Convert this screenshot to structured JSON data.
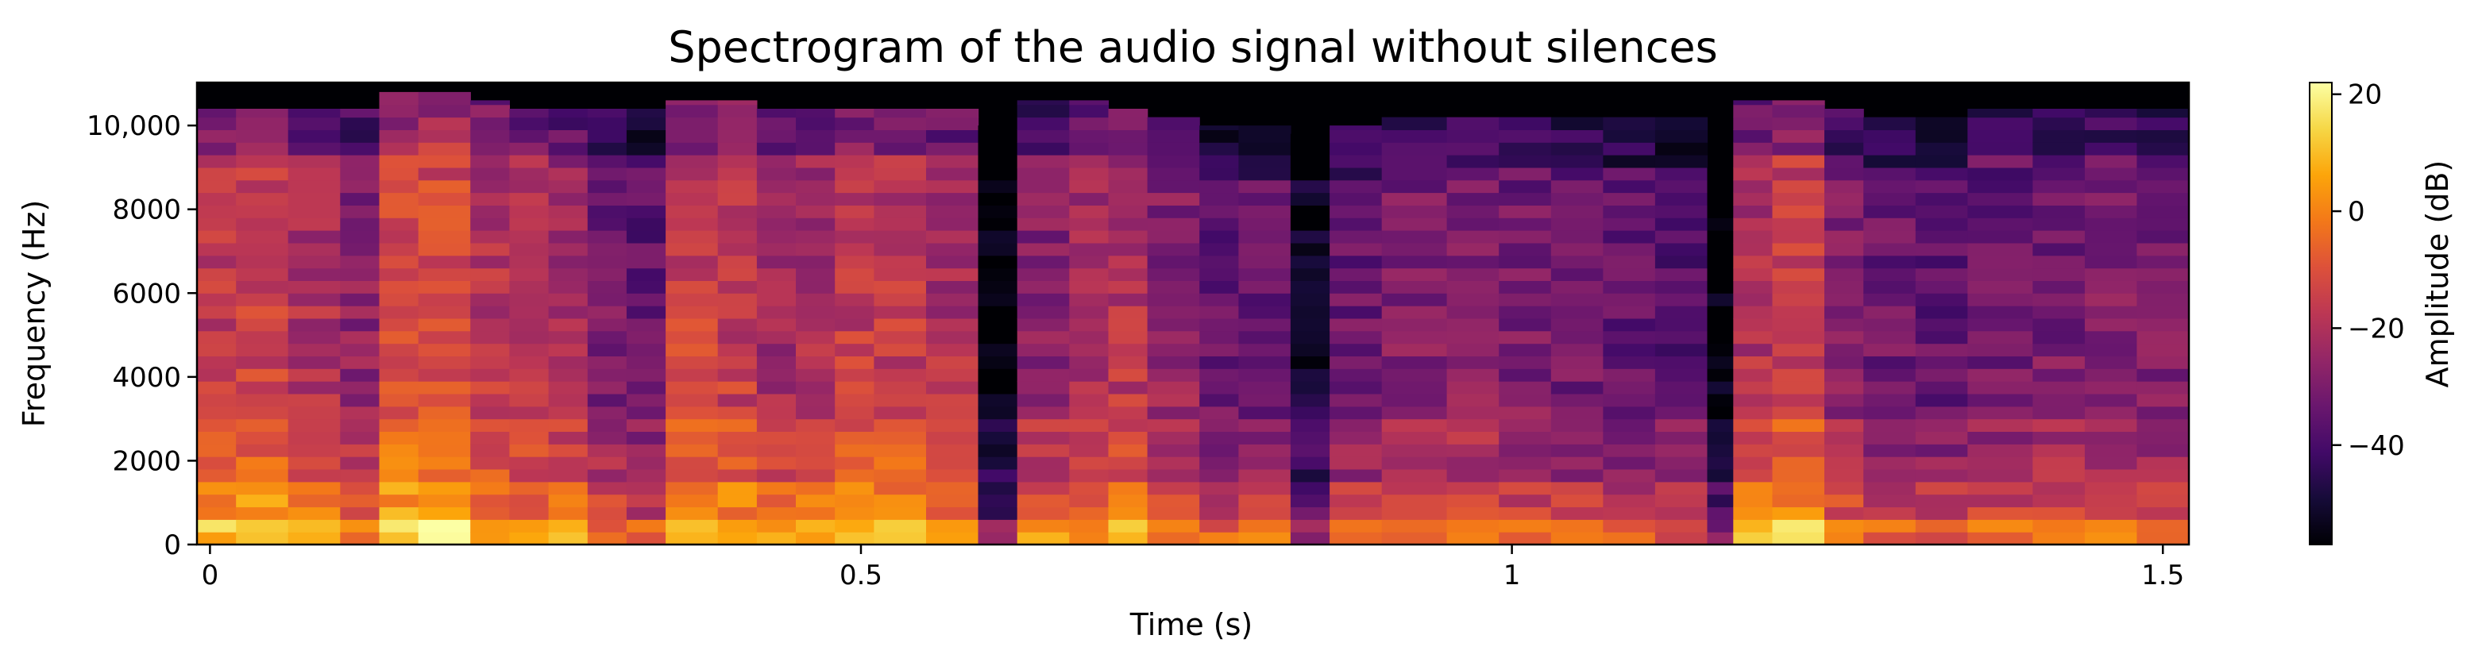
{
  "chart_data": {
    "type": "heatmap",
    "title": "Spectrogram of the audio signal without silences",
    "xlabel": "Time (s)",
    "ylabel": "Frequency (Hz)",
    "xlim": [
      -0.01,
      1.52
    ],
    "ylim": [
      0,
      11025
    ],
    "xticks": [
      0,
      0.5,
      1,
      1.5
    ],
    "xtick_labels": [
      "0",
      "0.5",
      "1",
      "1.5"
    ],
    "yticks": [
      0,
      2000,
      4000,
      6000,
      8000,
      10000
    ],
    "ytick_labels": [
      "0",
      "2000",
      "4000",
      "6000",
      "8000",
      "10,000"
    ],
    "colormap": "inferno",
    "colorbar": {
      "label": "Amplitude (dB)",
      "range": [
        -57,
        22
      ],
      "ticks": [
        20,
        0,
        -20,
        -40
      ],
      "tick_labels": [
        "20",
        "0",
        "−20",
        "−40"
      ]
    },
    "time_segments_s": [
      [
        -0.01,
        0.02
      ],
      [
        0.02,
        0.06
      ],
      [
        0.06,
        0.1
      ],
      [
        0.1,
        0.13
      ],
      [
        0.13,
        0.16
      ],
      [
        0.16,
        0.2
      ],
      [
        0.2,
        0.23
      ],
      [
        0.23,
        0.26
      ],
      [
        0.26,
        0.29
      ],
      [
        0.29,
        0.32
      ],
      [
        0.32,
        0.35
      ],
      [
        0.35,
        0.39
      ],
      [
        0.39,
        0.42
      ],
      [
        0.42,
        0.45
      ],
      [
        0.45,
        0.48
      ],
      [
        0.48,
        0.51
      ],
      [
        0.51,
        0.55
      ],
      [
        0.55,
        0.59
      ],
      [
        0.59,
        0.62
      ],
      [
        0.62,
        0.66
      ],
      [
        0.66,
        0.69
      ],
      [
        0.69,
        0.72
      ],
      [
        0.72,
        0.76
      ],
      [
        0.76,
        0.79
      ],
      [
        0.79,
        0.83
      ],
      [
        0.83,
        0.86
      ],
      [
        0.86,
        0.9
      ],
      [
        0.9,
        0.95
      ],
      [
        0.95,
        0.99
      ],
      [
        0.99,
        1.03
      ],
      [
        1.03,
        1.07
      ],
      [
        1.07,
        1.11
      ],
      [
        1.11,
        1.15
      ],
      [
        1.15,
        1.17
      ],
      [
        1.17,
        1.2
      ],
      [
        1.2,
        1.24
      ],
      [
        1.24,
        1.27
      ],
      [
        1.27,
        1.31
      ],
      [
        1.31,
        1.35
      ],
      [
        1.35,
        1.4
      ],
      [
        1.4,
        1.44
      ],
      [
        1.44,
        1.48
      ],
      [
        1.48,
        1.52
      ]
    ],
    "segment_level_db": [
      -10,
      -8,
      -14,
      -20,
      -6,
      -4,
      -12,
      -14,
      -16,
      -24,
      -28,
      -8,
      -10,
      -16,
      -14,
      -10,
      -10,
      -14,
      -50,
      -20,
      -16,
      -12,
      -20,
      -28,
      -26,
      -44,
      -26,
      -22,
      -22,
      -24,
      -26,
      -28,
      -30,
      -50,
      -14,
      -8,
      -22,
      -26,
      -28,
      -26,
      -24,
      -22,
      -24
    ],
    "segment_top_hz": [
      10400,
      10400,
      10400,
      10400,
      10800,
      10800,
      10600,
      10400,
      10400,
      10400,
      10400,
      10600,
      10600,
      10400,
      10400,
      10400,
      10400,
      10400,
      10000,
      10600,
      10600,
      10400,
      10200,
      10000,
      10000,
      9800,
      10000,
      10200,
      10200,
      10200,
      10200,
      10200,
      10200,
      9000,
      10600,
      10600,
      10400,
      10200,
      10200,
      10400,
      10400,
      10400,
      10400
    ]
  }
}
